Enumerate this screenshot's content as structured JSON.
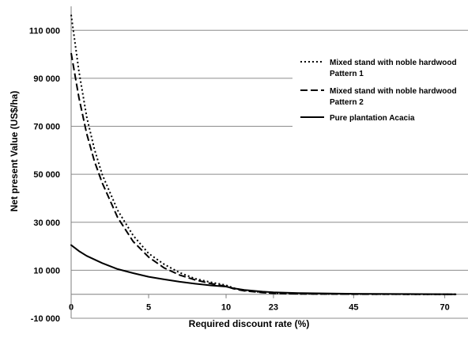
{
  "chart_data": {
    "type": "line",
    "xlabel": "Required discount rate (%)",
    "ylabel": "Net present Value (US$/ha)",
    "ylim": [
      -10000,
      120000
    ],
    "y_ticks": [
      -10000,
      10000,
      30000,
      50000,
      70000,
      90000,
      110000
    ],
    "y_tick_labels": [
      "-10 000",
      "10 000",
      "30 000",
      "50 000",
      "70 000",
      "90 000",
      "110 000"
    ],
    "x_ticks": [
      0,
      5,
      10,
      23,
      45,
      70
    ],
    "x_tick_labels": [
      "0",
      "5",
      "10",
      "23",
      "45",
      "70"
    ],
    "x_axis_note": "piecewise scale: 0–10 and 10–73 use different spacing",
    "grid": "horizontal",
    "legend_position": "right",
    "series": [
      {
        "name": "Mixed stand with noble hardwood Pattern 1",
        "style": "dotted",
        "x": [
          0,
          0.5,
          1,
          1.5,
          2,
          3,
          4,
          5,
          6,
          7,
          8,
          9,
          10,
          12,
          15,
          20,
          23,
          30,
          45,
          60,
          73
        ],
        "y": [
          116500,
          93000,
          74000,
          60500,
          50000,
          35000,
          24500,
          17000,
          12500,
          9000,
          6500,
          5000,
          3800,
          2600,
          1600,
          800,
          500,
          200,
          50,
          0,
          0
        ]
      },
      {
        "name": "Mixed stand with noble hardwood Pattern 2",
        "style": "dashed",
        "x": [
          0,
          0.5,
          1,
          1.5,
          2,
          3,
          4,
          5,
          6,
          7,
          8,
          9,
          10,
          12,
          15,
          20,
          23,
          30,
          45,
          60,
          73
        ],
        "y": [
          100500,
          82000,
          67000,
          55500,
          46500,
          32000,
          22000,
          15500,
          11000,
          8000,
          6000,
          4500,
          3300,
          2300,
          1400,
          700,
          400,
          150,
          30,
          0,
          0
        ]
      },
      {
        "name": "Pure plantation Acacia",
        "style": "solid",
        "x": [
          0,
          0.5,
          1,
          2,
          3,
          4,
          5,
          6,
          7,
          8,
          9,
          10,
          12,
          15,
          20,
          23,
          30,
          45,
          60,
          73
        ],
        "y": [
          20500,
          18000,
          16000,
          13000,
          10500,
          8800,
          7300,
          6200,
          5200,
          4400,
          3700,
          3200,
          2500,
          1800,
          1100,
          800,
          500,
          200,
          80,
          0
        ]
      }
    ]
  }
}
